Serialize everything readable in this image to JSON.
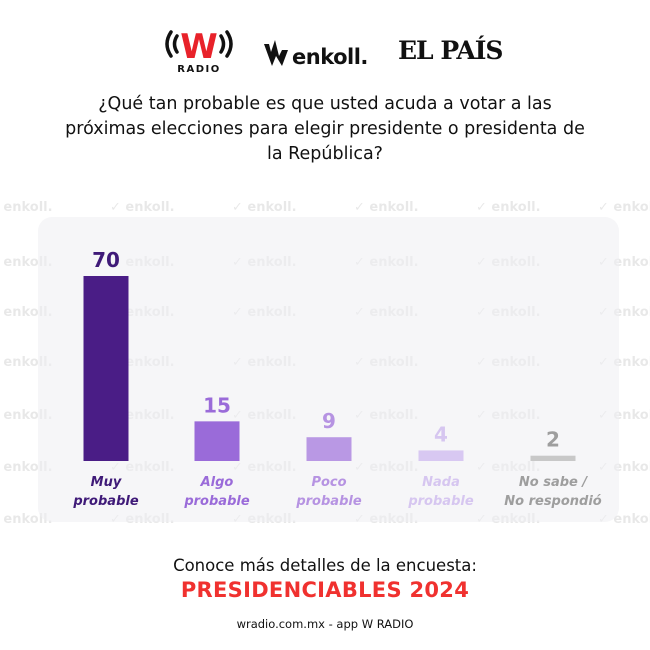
{
  "logos": {
    "wradio": {
      "mark": "W",
      "label": "RADIO",
      "color": "#e8222a"
    },
    "enkoll": {
      "text": "enkoll."
    },
    "elpais": {
      "text": "EL PAÍS"
    }
  },
  "question": "¿Qué tan probable es que usted acuda a votar a las próximas elecciones para elegir presidente o presidenta de la República?",
  "watermark_text": "enkoll.",
  "chart_data": {
    "type": "bar",
    "title": "¿Qué tan probable es que usted acuda a votar a las próximas elecciones para elegir presidente o presidenta de la República?",
    "categories": [
      [
        "Muy",
        "probable"
      ],
      [
        "Algo",
        "probable"
      ],
      [
        "Poco",
        "probable"
      ],
      [
        "Nada",
        "probable"
      ],
      [
        "No sabe /",
        "No respondió"
      ]
    ],
    "values": [
      70,
      15,
      9,
      4,
      2
    ],
    "labels": [
      "70",
      "15",
      "9",
      "4",
      "2"
    ],
    "colors": [
      "#4a1d86",
      "#9a6bd9",
      "#b998e4",
      "#d8c8f2",
      "#c8c8c8"
    ],
    "label_colors": [
      "#3f1a78",
      "#9a6bd9",
      "#b693e2",
      "#d6c6f0",
      "#9e9e9e"
    ],
    "xlabel": "",
    "ylabel": "",
    "ylim": [
      0,
      70
    ],
    "grid": false,
    "legend": "none"
  },
  "cta": {
    "intro": "Conoce más detalles de la encuesta:",
    "highlight": "PRESIDENCIABLES 2024",
    "highlight_color": "#f0312f"
  },
  "footer": "wradio.com.mx - app W RADIO"
}
